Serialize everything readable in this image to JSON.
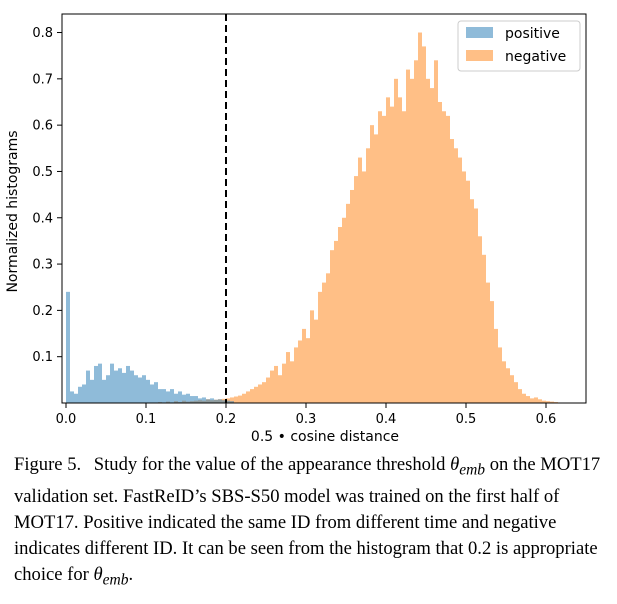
{
  "chart_data": {
    "type": "histogram",
    "xlabel": "0.5 • cosine distance",
    "ylabel": "Normalized histograms",
    "xlim": [
      -0.005,
      0.65
    ],
    "ylim": [
      0,
      0.84
    ],
    "xticks": [
      "0.0",
      "0.1",
      "0.2",
      "0.3",
      "0.4",
      "0.5",
      "0.6"
    ],
    "yticks": [
      "0.1",
      "0.2",
      "0.3",
      "0.4",
      "0.5",
      "0.6",
      "0.7",
      "0.8"
    ],
    "threshold": 0.2,
    "bin_width": 0.005,
    "legend_position": "top-right",
    "series": [
      {
        "name": "positive",
        "color": "#1f77b4",
        "x_start": 0.0,
        "values": [
          0.24,
          0.025,
          0.02,
          0.035,
          0.04,
          0.07,
          0.05,
          0.08,
          0.085,
          0.05,
          0.06,
          0.085,
          0.07,
          0.075,
          0.065,
          0.08,
          0.07,
          0.06,
          0.055,
          0.06,
          0.05,
          0.04,
          0.045,
          0.03,
          0.03,
          0.025,
          0.03,
          0.02,
          0.025,
          0.018,
          0.02,
          0.015,
          0.015,
          0.01,
          0.012,
          0.008,
          0.01,
          0.007,
          0.008,
          0.006,
          0.005,
          0.004
        ]
      },
      {
        "name": "negative",
        "color": "#ff7f0e",
        "x_start": 0.115,
        "values": [
          0.002,
          0,
          0.003,
          0,
          0.004,
          0.002,
          0.005,
          0.003,
          0.004,
          0.005,
          0.006,
          0.005,
          0.008,
          0.006,
          0.007,
          0.008,
          0.009,
          0.01,
          0.012,
          0.014,
          0.016,
          0.02,
          0.025,
          0.03,
          0.035,
          0.04,
          0.045,
          0.055,
          0.07,
          0.08,
          0.06,
          0.085,
          0.11,
          0.09,
          0.12,
          0.135,
          0.16,
          0.14,
          0.2,
          0.18,
          0.24,
          0.26,
          0.28,
          0.33,
          0.35,
          0.38,
          0.4,
          0.43,
          0.46,
          0.49,
          0.53,
          0.5,
          0.55,
          0.6,
          0.58,
          0.63,
          0.62,
          0.66,
          0.64,
          0.7,
          0.66,
          0.63,
          0.72,
          0.7,
          0.74,
          0.8,
          0.77,
          0.7,
          0.68,
          0.74,
          0.65,
          0.63,
          0.62,
          0.57,
          0.55,
          0.53,
          0.5,
          0.48,
          0.44,
          0.42,
          0.36,
          0.32,
          0.26,
          0.22,
          0.16,
          0.12,
          0.09,
          0.075,
          0.06,
          0.045,
          0.03,
          0.02,
          0.015,
          0.01,
          0.012,
          0.008,
          0.005,
          0.004,
          0.003,
          0.002
        ]
      }
    ]
  },
  "caption": {
    "label": "Figure 5.",
    "text_before_symbol": "Study for the value of the appearance threshold",
    "symbol": "θ",
    "symbol_sub": "emb",
    "text_middle": "on the MOT17 validation set. FastReID’s SBS-S50 model was trained on the first half of MOT17. Positive indicated the same ID from different time and negative indicates different ID. It can be seen from the histogram that 0.2 is appropriate choice for",
    "text_end": "."
  }
}
